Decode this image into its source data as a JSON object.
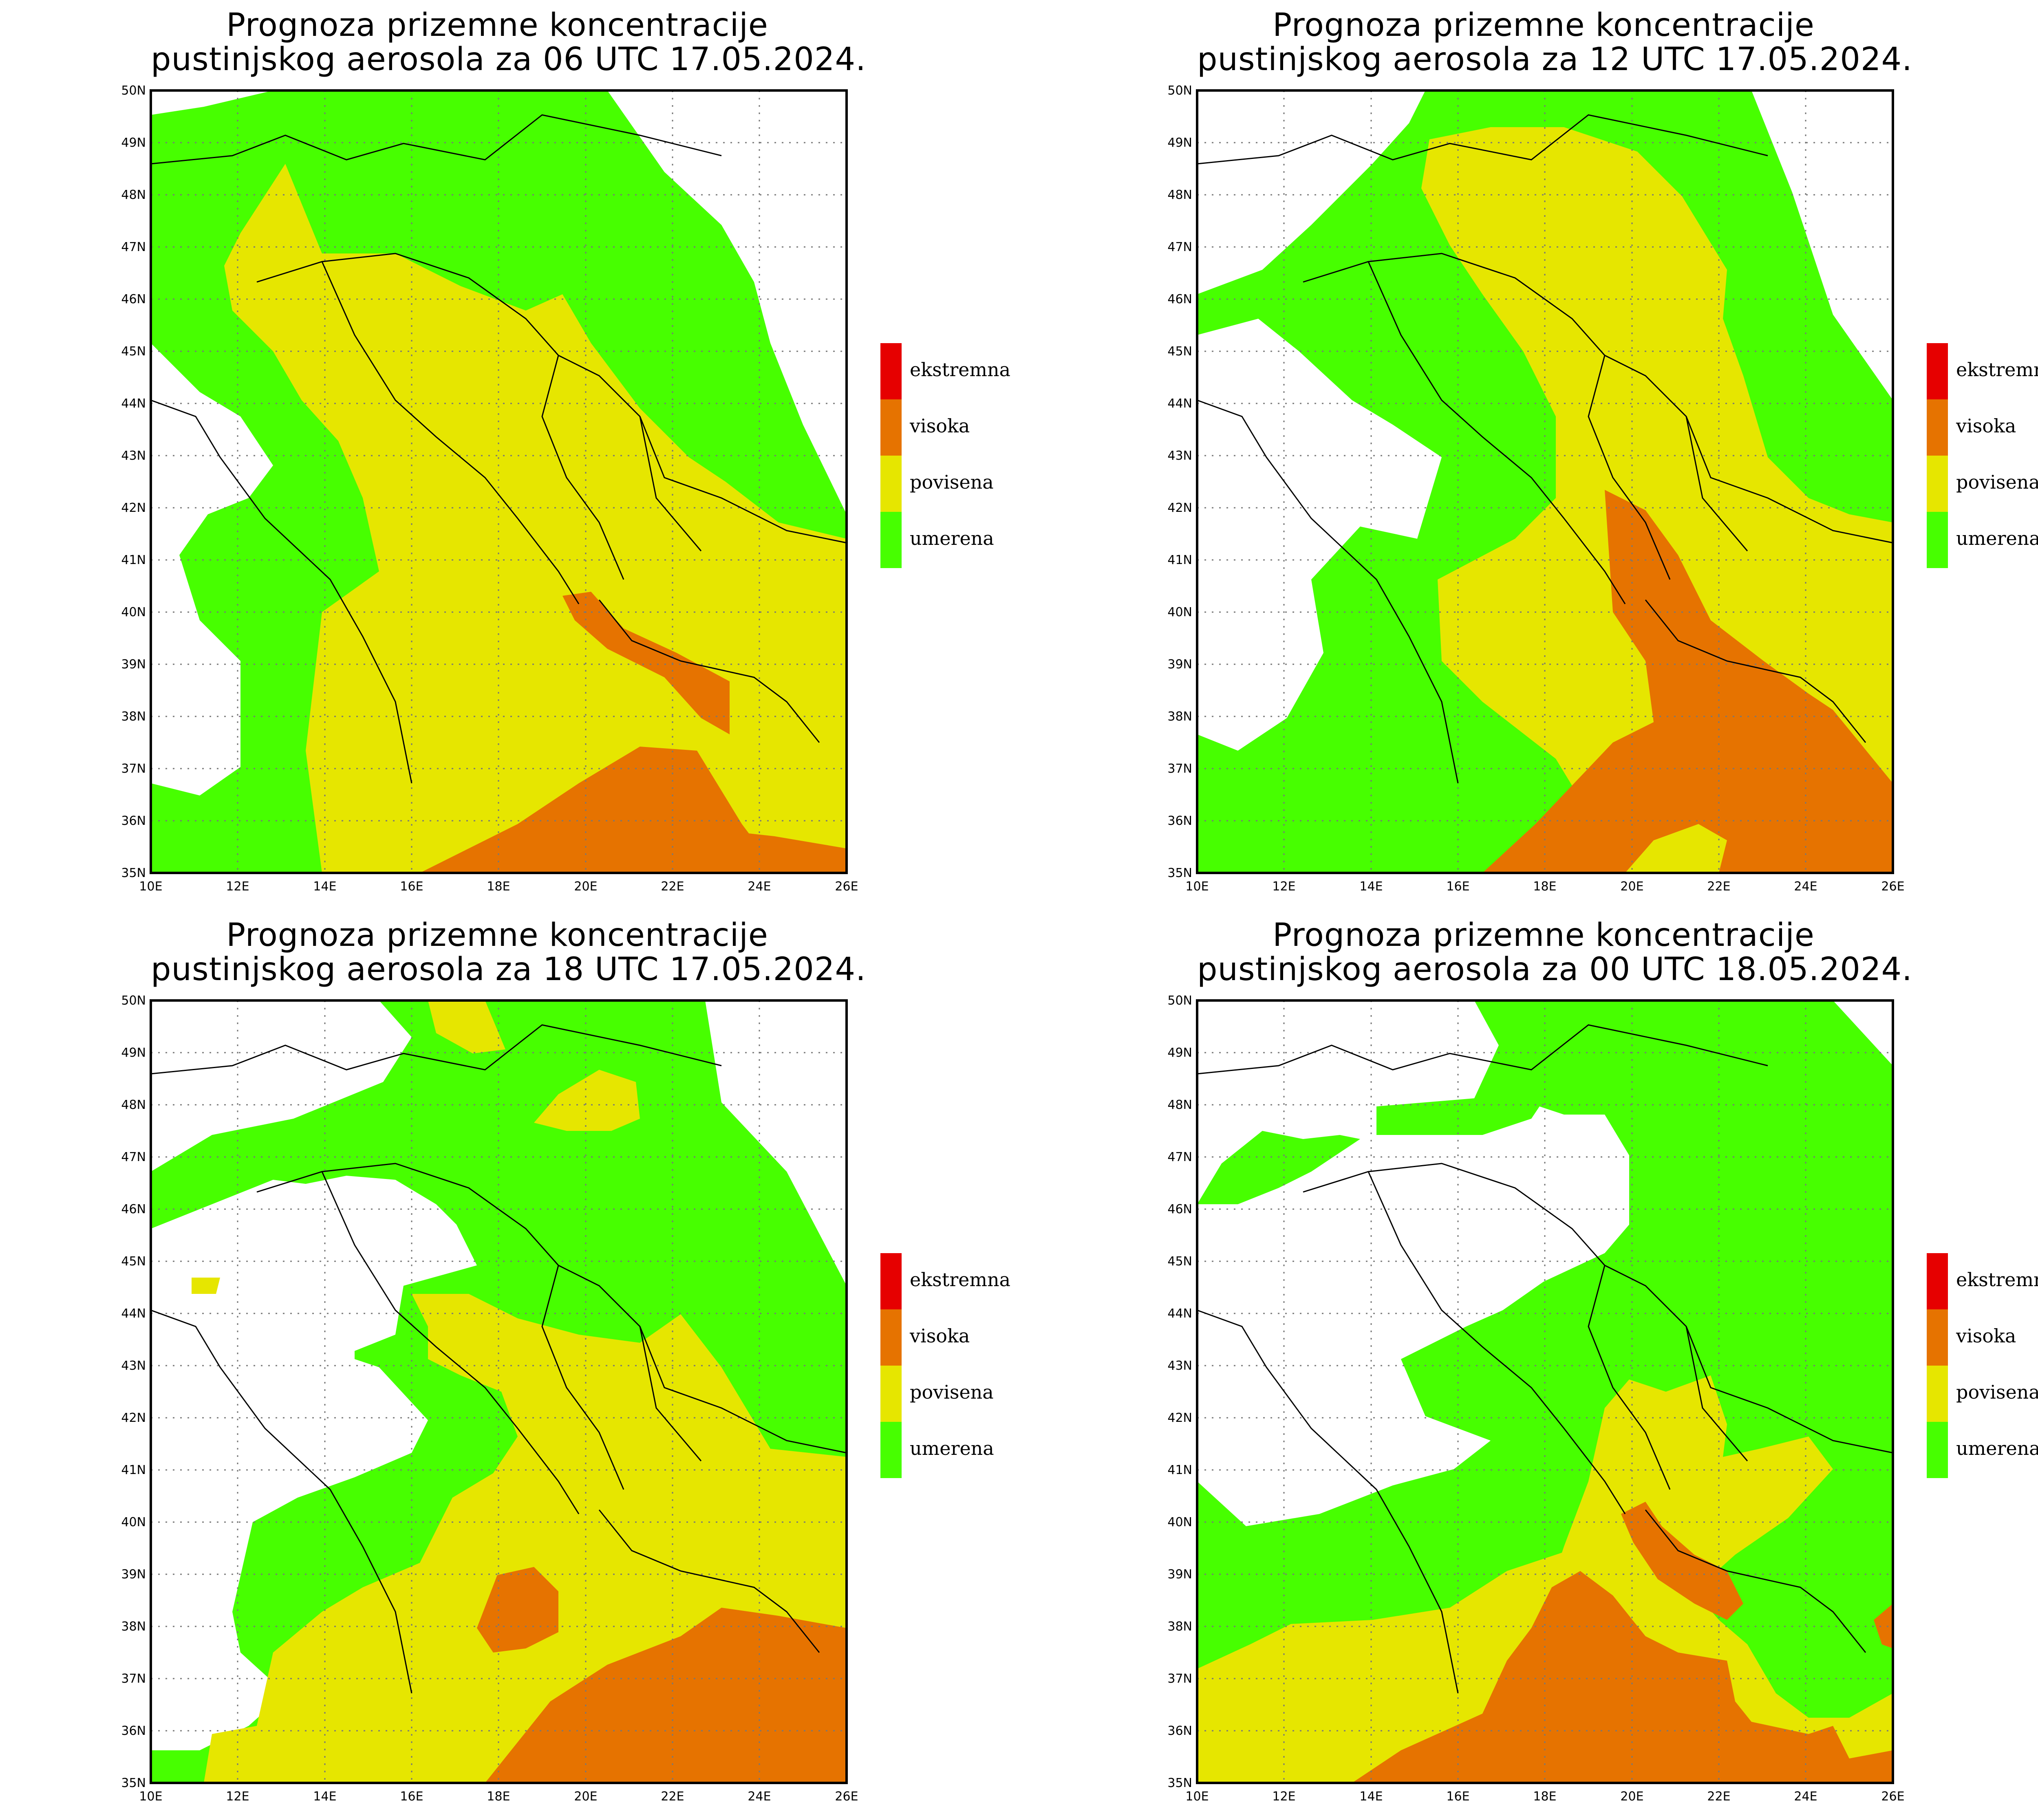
{
  "panels": [
    {
      "title_line1": "Prognoza prizemne koncentracije",
      "title_line2": "pustinjskog aerosola za 06 UTC 17.05.2024."
    },
    {
      "title_line1": "Prognoza prizemne koncentracije",
      "title_line2": "pustinjskog aerosola za 12 UTC 17.05.2024."
    },
    {
      "title_line1": "Prognoza prizemne koncentracije",
      "title_line2": "pustinjskog aerosola za 18 UTC 17.05.2024."
    },
    {
      "title_line1": "Prognoza prizemne koncentracije",
      "title_line2": "pustinjskog aerosola za 00 UTC 18.05.2024."
    }
  ],
  "axes": {
    "lat_labels": [
      "35N",
      "36N",
      "37N",
      "38N",
      "39N",
      "40N",
      "41N",
      "42N",
      "43N",
      "44N",
      "45N",
      "46N",
      "47N",
      "48N",
      "49N",
      "50N"
    ],
    "lon_labels": [
      "10E",
      "12E",
      "14E",
      "16E",
      "18E",
      "20E",
      "22E",
      "24E",
      "26E"
    ]
  },
  "legend": {
    "items": [
      {
        "label": "ekstremna",
        "color": "#e60000"
      },
      {
        "label": "visoka",
        "color": "#e67300"
      },
      {
        "label": "povisena",
        "color": "#e6e600"
      },
      {
        "label": "umerena",
        "color": "#47ff00"
      }
    ]
  },
  "colors": {
    "ekstremna": "#e60000",
    "visoka": "#e67300",
    "povisena": "#e6e600",
    "umerena": "#47ff00",
    "none": "#ffffff"
  }
}
